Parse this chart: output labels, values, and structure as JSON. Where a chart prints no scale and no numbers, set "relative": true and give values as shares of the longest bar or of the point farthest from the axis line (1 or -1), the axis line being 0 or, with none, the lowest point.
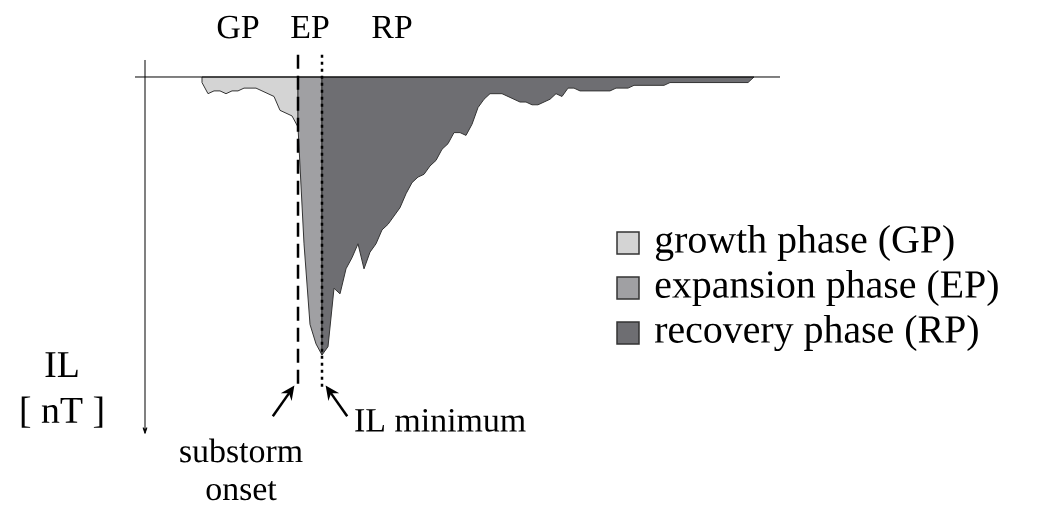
{
  "chart_data": {
    "type": "area",
    "relative": true,
    "ylabel": "IL [ nT ]",
    "legend": "right",
    "categories": [
      null,
      null,
      null,
      null,
      null,
      null,
      null,
      null,
      null,
      null,
      null,
      null,
      null,
      null,
      null,
      null,
      null,
      null,
      null,
      null,
      null,
      null,
      null,
      null,
      null,
      null,
      null,
      null,
      null,
      null,
      null,
      null,
      null,
      null,
      null,
      null,
      null,
      null,
      null,
      null,
      null,
      null,
      null,
      null,
      null,
      null,
      null,
      null,
      null,
      null,
      null,
      null,
      null,
      null,
      null,
      null,
      null,
      null,
      null,
      null,
      null,
      null,
      null,
      null,
      null,
      null,
      null,
      null,
      null,
      null,
      null,
      null,
      null,
      null,
      null,
      null,
      null,
      null,
      null,
      null,
      null,
      null,
      null,
      null,
      null,
      null,
      null,
      null,
      null,
      null,
      null,
      null,
      null
    ],
    "series": [
      {
        "name": "growth phase (GP)",
        "color": "#d4d4d4",
        "values": [
          -0.02,
          -0.06,
          -0.05,
          -0.05,
          -0.06,
          -0.05,
          -0.05,
          -0.04,
          -0.04,
          -0.04,
          -0.05,
          -0.06,
          -0.07,
          -0.12,
          -0.13,
          -0.14,
          -0.18,
          null,
          null,
          null,
          null,
          null,
          null,
          null,
          null,
          null,
          null,
          null,
          null,
          null,
          null,
          null,
          null,
          null,
          null,
          null,
          null,
          null,
          null,
          null,
          null,
          null,
          null,
          null,
          null,
          null,
          null,
          null,
          null,
          null,
          null,
          null,
          null,
          null,
          null,
          null,
          null,
          null,
          null,
          null,
          null,
          null,
          null,
          null,
          null,
          null,
          null,
          null,
          null,
          null,
          null,
          null,
          null,
          null,
          null,
          null,
          null,
          null,
          null,
          null,
          null,
          null,
          null,
          null,
          null,
          null,
          null,
          null,
          null,
          null,
          null,
          null,
          null
        ]
      },
      {
        "name": "expansion phase (EP)",
        "color": "#a0a0a3",
        "values": [
          null,
          null,
          null,
          null,
          null,
          null,
          null,
          null,
          null,
          null,
          null,
          null,
          null,
          null,
          null,
          null,
          -0.18,
          -0.6,
          -0.89,
          -0.96,
          -1,
          null,
          null,
          null,
          null,
          null,
          null,
          null,
          null,
          null,
          null,
          null,
          null,
          null,
          null,
          null,
          null,
          null,
          null,
          null,
          null,
          null,
          null,
          null,
          null,
          null,
          null,
          null,
          null,
          null,
          null,
          null,
          null,
          null,
          null,
          null,
          null,
          null,
          null,
          null,
          null,
          null,
          null,
          null,
          null,
          null,
          null,
          null,
          null,
          null,
          null,
          null,
          null,
          null,
          null,
          null,
          null,
          null,
          null,
          null,
          null,
          null,
          null,
          null,
          null,
          null,
          null,
          null,
          null,
          null,
          null,
          null,
          null
        ]
      },
      {
        "name": "recovery phase (RP)",
        "color": "#6e6e72",
        "values": [
          null,
          null,
          null,
          null,
          null,
          null,
          null,
          null,
          null,
          null,
          null,
          null,
          null,
          null,
          null,
          null,
          null,
          null,
          null,
          null,
          -1,
          -0.97,
          -0.76,
          -0.78,
          -0.69,
          -0.65,
          -0.6,
          -0.69,
          -0.63,
          -0.6,
          -0.55,
          -0.53,
          -0.5,
          -0.47,
          -0.42,
          -0.38,
          -0.36,
          -0.35,
          -0.32,
          -0.3,
          -0.26,
          -0.24,
          -0.2,
          -0.2,
          -0.21,
          -0.17,
          -0.11,
          -0.08,
          -0.06,
          -0.06,
          -0.06,
          -0.07,
          -0.08,
          -0.09,
          -0.09,
          -0.1,
          -0.1,
          -0.09,
          -0.08,
          -0.06,
          -0.07,
          -0.04,
          -0.04,
          -0.05,
          -0.05,
          -0.05,
          -0.05,
          -0.05,
          -0.05,
          -0.04,
          -0.04,
          -0.04,
          -0.03,
          -0.03,
          -0.03,
          -0.03,
          -0.03,
          -0.03,
          -0.02,
          -0.02,
          -0.02,
          -0.02,
          -0.02,
          -0.02,
          -0.02,
          -0.02,
          -0.02,
          -0.02,
          -0.02,
          -0.02,
          -0.02,
          -0.02,
          0
        ]
      }
    ],
    "annotations": [
      "GP",
      "EP",
      "RP",
      "substorm onset",
      "IL minimum"
    ]
  }
}
